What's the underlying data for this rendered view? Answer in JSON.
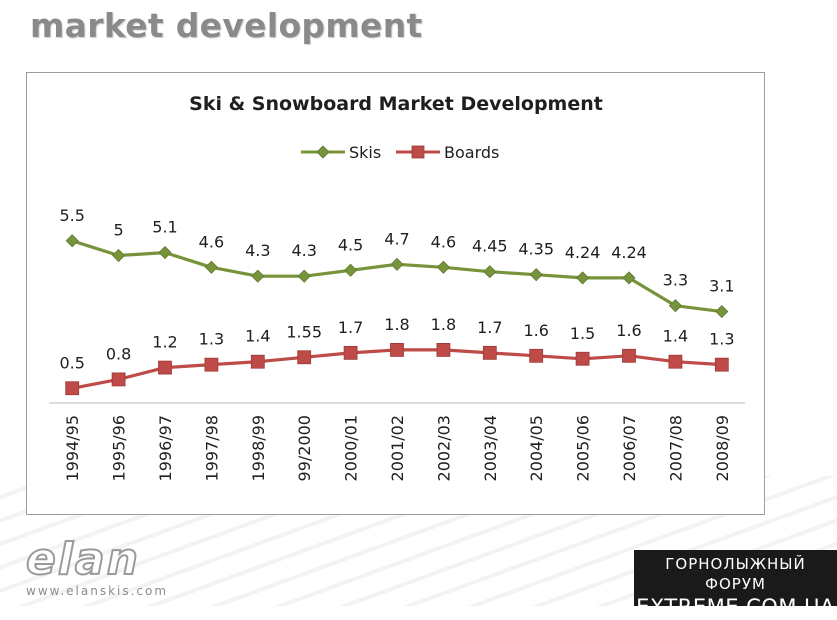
{
  "slide": {
    "title": "market development"
  },
  "chart_data": {
    "type": "line",
    "title": "Ski & Snowboard Market Development",
    "xlabel": "",
    "ylabel": "",
    "ylim": [
      0,
      6.5
    ],
    "grid": false,
    "legend_position": "top",
    "categories": [
      "1994/95",
      "1995/96",
      "1996/97",
      "1997/98",
      "1998/99",
      "99/2000",
      "2000/01",
      "2001/02",
      "2002/03",
      "2003/04",
      "2004/05",
      "2005/06",
      "2006/07",
      "2007/08",
      "2008/09"
    ],
    "series": [
      {
        "name": "Skis",
        "color": "#77933c",
        "marker": "diamond",
        "values": [
          5.5,
          5,
          5.1,
          4.6,
          4.3,
          4.3,
          4.5,
          4.7,
          4.6,
          4.45,
          4.35,
          4.24,
          4.24,
          3.3,
          3.1
        ],
        "labels": [
          "5.5",
          "5",
          "5.1",
          "4.6",
          "4.3",
          "4.3",
          "4.5",
          "4.7",
          "4.6",
          "4.45",
          "4.35",
          "4.24",
          "4.24",
          "3.3",
          "3.1"
        ]
      },
      {
        "name": "Boards",
        "color": "#be4b48",
        "marker": "square",
        "values": [
          0.5,
          0.8,
          1.2,
          1.3,
          1.4,
          1.55,
          1.7,
          1.8,
          1.8,
          1.7,
          1.6,
          1.5,
          1.6,
          1.4,
          1.3
        ],
        "labels": [
          "0.5",
          "0.8",
          "1.2",
          "1.3",
          "1.4",
          "1.55",
          "1.7",
          "1.8",
          "1.8",
          "1.7",
          "1.6",
          "1.5",
          "1.6",
          "1.4",
          "1.3"
        ]
      }
    ]
  },
  "footer": {
    "logo_text": "elan",
    "logo_url": "www.elanskis.com",
    "forum_line1": "ГОРНОЛЫЖНЫЙ ФОРУМ",
    "forum_line2": "EXTREME.COM.UA"
  }
}
